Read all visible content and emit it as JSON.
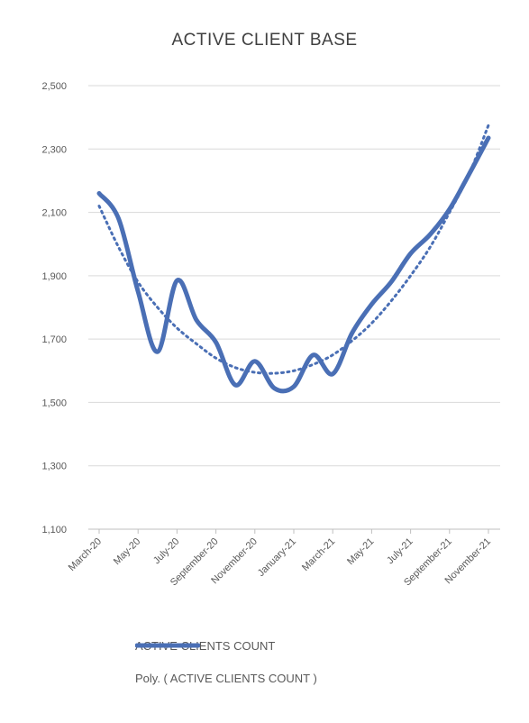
{
  "chart_data": {
    "type": "line",
    "title": "ACTIVE CLIENT BASE",
    "xlabel": "",
    "ylabel": "",
    "ylim": [
      1100,
      2500
    ],
    "yticks": [
      "1,100",
      "1,300",
      "1,500",
      "1,700",
      "1,900",
      "2,100",
      "2,300",
      "2,500"
    ],
    "ytick_values": [
      1100,
      1300,
      1500,
      1700,
      1900,
      2100,
      2300,
      2500
    ],
    "x_tick_labels": [
      "March-20",
      "May-20",
      "July-20",
      "September-20",
      "November-20",
      "January-21",
      "March-21",
      "May-21",
      "July-21",
      "September-21",
      "November-21"
    ],
    "months": 21,
    "series": [
      {
        "name": "ACTIVE CLIENTS COUNT",
        "style": "solid",
        "color": "#4a6fb5",
        "values": [
          2160,
          2080,
          1850,
          1660,
          1885,
          1760,
          1690,
          1555,
          1630,
          1545,
          1550,
          1650,
          1590,
          1720,
          1810,
          1880,
          1970,
          2030,
          2110,
          2220,
          2335
        ]
      },
      {
        "name": "Poly. ( ACTIVE CLIENTS COUNT )",
        "style": "dotted",
        "color": "#4a6fb5",
        "values": [
          2120,
          1990,
          1880,
          1800,
          1735,
          1685,
          1640,
          1610,
          1595,
          1592,
          1600,
          1620,
          1650,
          1695,
          1750,
          1820,
          1900,
          1990,
          2100,
          2220,
          2375
        ]
      }
    ],
    "legend_position": "bottom",
    "grid": true
  }
}
